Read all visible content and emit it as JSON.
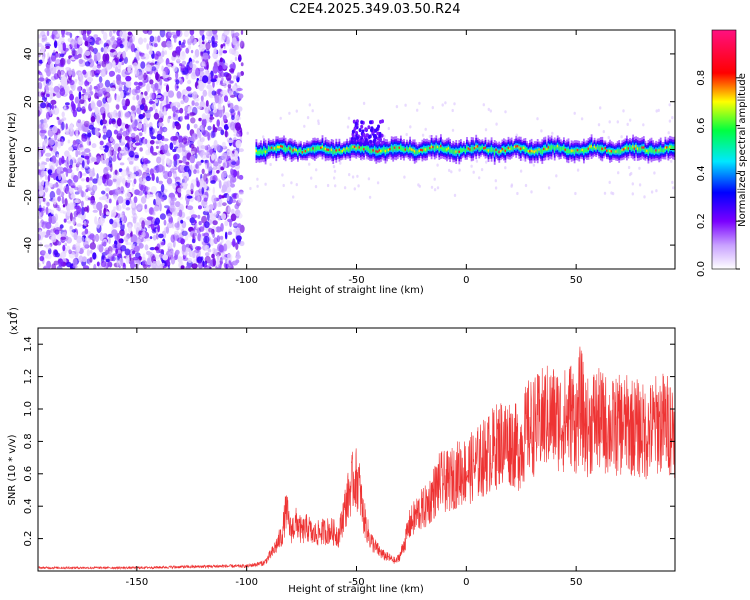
{
  "figure_title": "C2E4.2025.349.03.50.R24",
  "chart_data": [
    {
      "type": "heatmap",
      "title": "",
      "xlabel": "Height of straight line (km)",
      "ylabel": "Frequency (Hz)",
      "xlim": [
        -195,
        95
      ],
      "ylim": [
        -50,
        50
      ],
      "xticks": [
        -150,
        -100,
        -50,
        0,
        50
      ],
      "yticks": [
        -40,
        -20,
        0,
        20,
        40
      ],
      "xtick_labels": [
        "-150",
        "-100",
        "-50",
        "0",
        "50"
      ],
      "ytick_labels": [
        "-40",
        "-20",
        "0",
        "20",
        "40"
      ],
      "colorbar": {
        "label": "Normalized spectral amplitude",
        "range": [
          0,
          1
        ],
        "ticks": [
          0.0,
          0.2,
          0.4,
          0.6,
          0.8
        ],
        "tick_labels": [
          "0.0",
          "0.2",
          "0.4",
          "0.6",
          "0.8"
        ],
        "colormap": [
          "#ffffff",
          "#8a2be2",
          "#0000ff",
          "#00ffff",
          "#00ff00",
          "#ffff00",
          "#ff0000",
          "#ff0080"
        ]
      },
      "features": {
        "noise_region_x": [
          -195,
          -102
        ],
        "signal_band_center_hz": 0,
        "signal_band_halfwidth_hz": 4,
        "burst_near_x": -40,
        "burst_max_freq_hz": 12
      }
    },
    {
      "type": "line",
      "title": "",
      "xlabel": "Height of straight line (km)",
      "ylabel": "SNR (10 * v/v)",
      "y_multiplier_label": "(x10",
      "y_multiplier_exp": "4",
      "xlim": [
        -195,
        95
      ],
      "ylim": [
        0,
        1.5
      ],
      "xticks": [
        -150,
        -100,
        -50,
        0,
        50
      ],
      "yticks": [
        0.2,
        0.4,
        0.6,
        0.8,
        1.0,
        1.2,
        1.4
      ],
      "xtick_labels": [
        "-150",
        "-100",
        "-50",
        "0",
        "50"
      ],
      "ytick_labels": [
        "0.2",
        "0.4",
        "0.6",
        "0.8",
        "1.0",
        "1.2",
        "1.4"
      ],
      "color": "#ee3333",
      "series": [
        {
          "name": "SNR",
          "x": [
            -195,
            -150,
            -110,
            -100,
            -92,
            -88,
            -84,
            -82,
            -80,
            -77,
            -75,
            -72,
            -70,
            -66,
            -62,
            -58,
            -56,
            -53,
            -51,
            -49,
            -47,
            -44,
            -41,
            -38,
            -35,
            -32,
            -30,
            -28,
            -26,
            -22,
            -18,
            -15,
            -12,
            -8,
            -4,
            0,
            4,
            8,
            12,
            16,
            20,
            24,
            28,
            32,
            36,
            40,
            44,
            48,
            50,
            52,
            54,
            56,
            58,
            62,
            66,
            70,
            74,
            78,
            82,
            86,
            90,
            95
          ],
          "values": [
            0.02,
            0.02,
            0.03,
            0.03,
            0.05,
            0.12,
            0.22,
            0.38,
            0.25,
            0.3,
            0.24,
            0.27,
            0.22,
            0.24,
            0.25,
            0.22,
            0.35,
            0.5,
            0.58,
            0.55,
            0.35,
            0.2,
            0.14,
            0.1,
            0.08,
            0.06,
            0.1,
            0.18,
            0.28,
            0.36,
            0.4,
            0.48,
            0.55,
            0.55,
            0.6,
            0.62,
            0.65,
            0.7,
            0.75,
            0.8,
            0.8,
            0.75,
            0.88,
            0.9,
            0.95,
            0.95,
            0.92,
            0.98,
            0.9,
            1.05,
            0.9,
            0.88,
            0.94,
            0.92,
            0.88,
            0.9,
            0.9,
            0.88,
            0.85,
            0.9,
            0.92,
            0.88
          ]
        }
      ]
    }
  ]
}
